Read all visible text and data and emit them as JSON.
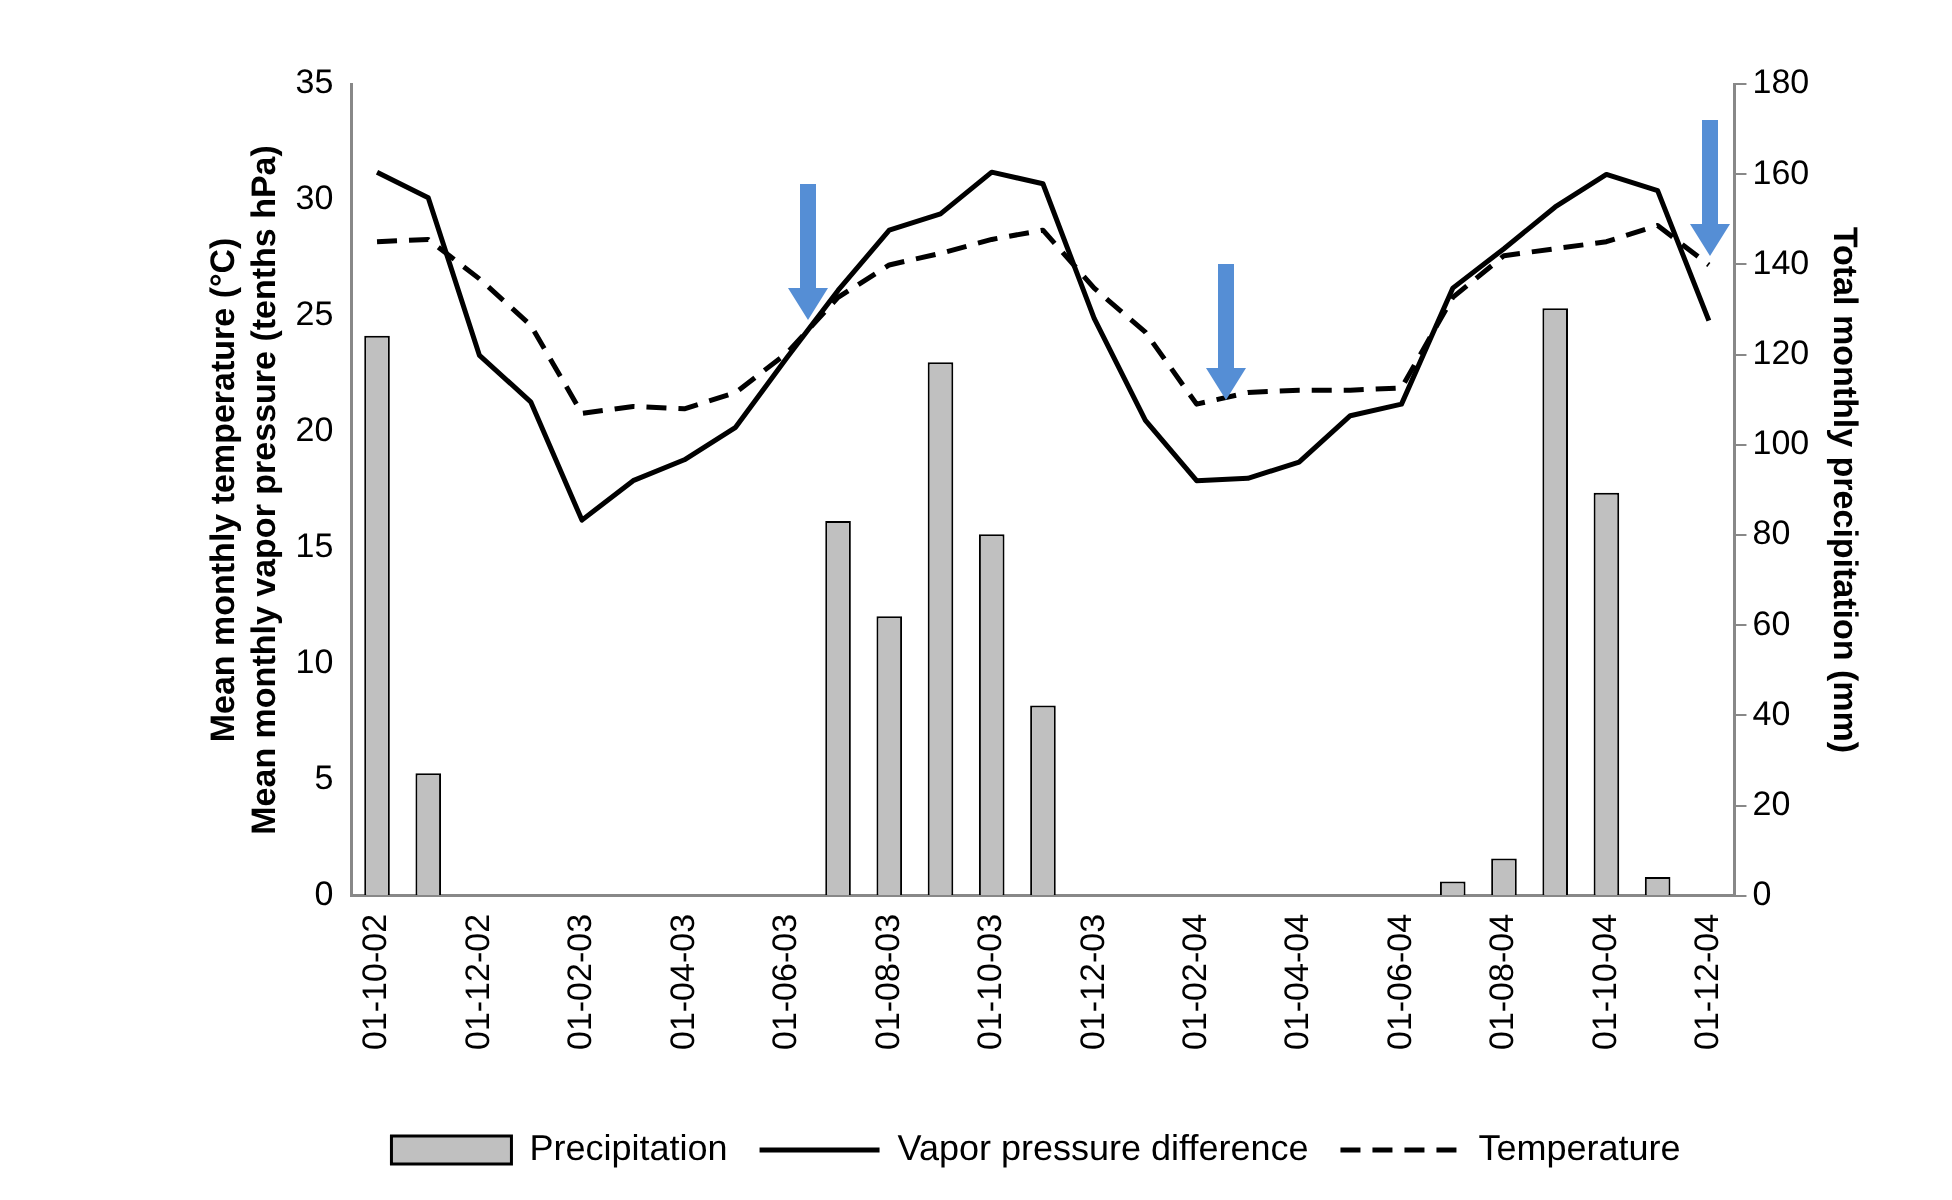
{
  "chart_data": {
    "type": "bar",
    "categories": [
      "01-10-02",
      null,
      "01-12-02",
      null,
      "01-02-03",
      null,
      "01-04-03",
      null,
      "01-06-03",
      null,
      "01-08-03",
      null,
      "01-10-03",
      null,
      "01-12-03",
      null,
      "01-02-04",
      null,
      "01-04-04",
      null,
      "01-06-04",
      null,
      "01-08-04",
      null,
      "01-10-04",
      null,
      "01-12-04"
    ],
    "series": [
      {
        "name": "Precipitation",
        "axis": "y2",
        "color": "#c0c0c0",
        "values": [
          124.2,
          27.2,
          0,
          0,
          0,
          0,
          0,
          0,
          0,
          83.1,
          62.0,
          118.3,
          80.2,
          42.2,
          0,
          0,
          0,
          0,
          0,
          0,
          0,
          3.2,
          8.3,
          130.3,
          89.4,
          4.2,
          0
        ]
      },
      {
        "name": "Vapor pressure difference",
        "type": "line",
        "color": "#000000",
        "line_style": "solid",
        "values": [
          31.2,
          30.1,
          23.3,
          21.3,
          16.2,
          17.9,
          18.8,
          20.2,
          23.2,
          26.1,
          28.7,
          29.4,
          31.2,
          30.7,
          24.9,
          20.5,
          17.9,
          18.0,
          18.7,
          20.7,
          21.2,
          26.2,
          27.9,
          29.7,
          31.1,
          30.4,
          24.8
        ]
      },
      {
        "name": "Temperature",
        "type": "line",
        "color": "#000000",
        "line_style": "dashed",
        "values": [
          28.2,
          28.3,
          26.6,
          24.6,
          20.8,
          21.1,
          21.0,
          21.7,
          23.4,
          25.8,
          27.2,
          27.7,
          28.3,
          28.7,
          26.2,
          24.3,
          21.2,
          21.7,
          21.8,
          21.8,
          21.9,
          25.8,
          27.6,
          27.9,
          28.2,
          28.9,
          27.2
        ]
      }
    ],
    "ylabel": "Mean monthly temperature (°C)\nMean monthly vapor pressure (tenths hPa)",
    "y2label": "Total monthly precipitation (mm)",
    "ylim": [
      0,
      35
    ],
    "yticks": [
      0,
      5,
      10,
      15,
      20,
      25,
      30,
      35
    ],
    "y2lim": [
      0,
      180
    ],
    "y2ticks": [
      0,
      20,
      40,
      60,
      80,
      100,
      120,
      140,
      160,
      180
    ],
    "grid": false,
    "legend": "bottom",
    "marker": "none"
  }
}
